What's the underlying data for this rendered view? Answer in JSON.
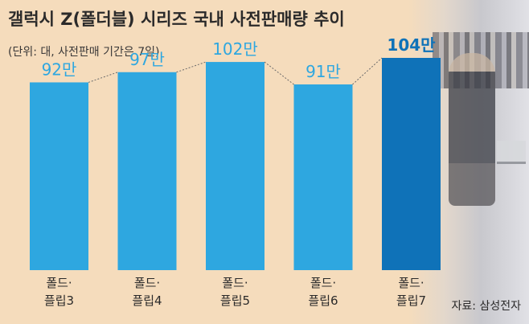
{
  "header": {
    "title": "갤럭시 Z(폴더블) 시리즈 국내 사전판매량 추이",
    "subtitle": "(단위: 대, 사전판매 기간은 7일)"
  },
  "footer": {
    "source": "자료: 삼성전자"
  },
  "colors": {
    "background": "#f5dcbc",
    "bar": "#2ea7e0",
    "bar_highlight": "#0f72b8",
    "label": "#2ea7e0",
    "label_highlight": "#0f72b8",
    "connector": "#6b6b6b"
  },
  "chart_data": {
    "type": "bar",
    "title": "갤럭시 Z(폴더블) 시리즈 국내 사전판매량 추이",
    "subtitle": "(단위: 대, 사전판매 기간은 7일)",
    "categories": [
      [
        "폴드·",
        "플립3"
      ],
      [
        "폴드·",
        "플립4"
      ],
      [
        "폴드·",
        "플립5"
      ],
      [
        "폴드·",
        "플립6"
      ],
      [
        "폴드·",
        "플립7"
      ]
    ],
    "values": [
      920000,
      970000,
      1020000,
      910000,
      1040000
    ],
    "data_labels": [
      "92만",
      "97만",
      "102만",
      "91만",
      "104만"
    ],
    "highlight_index": 4,
    "ylim": [
      0,
      1300000
    ],
    "grid": false,
    "connector_lines": true
  }
}
